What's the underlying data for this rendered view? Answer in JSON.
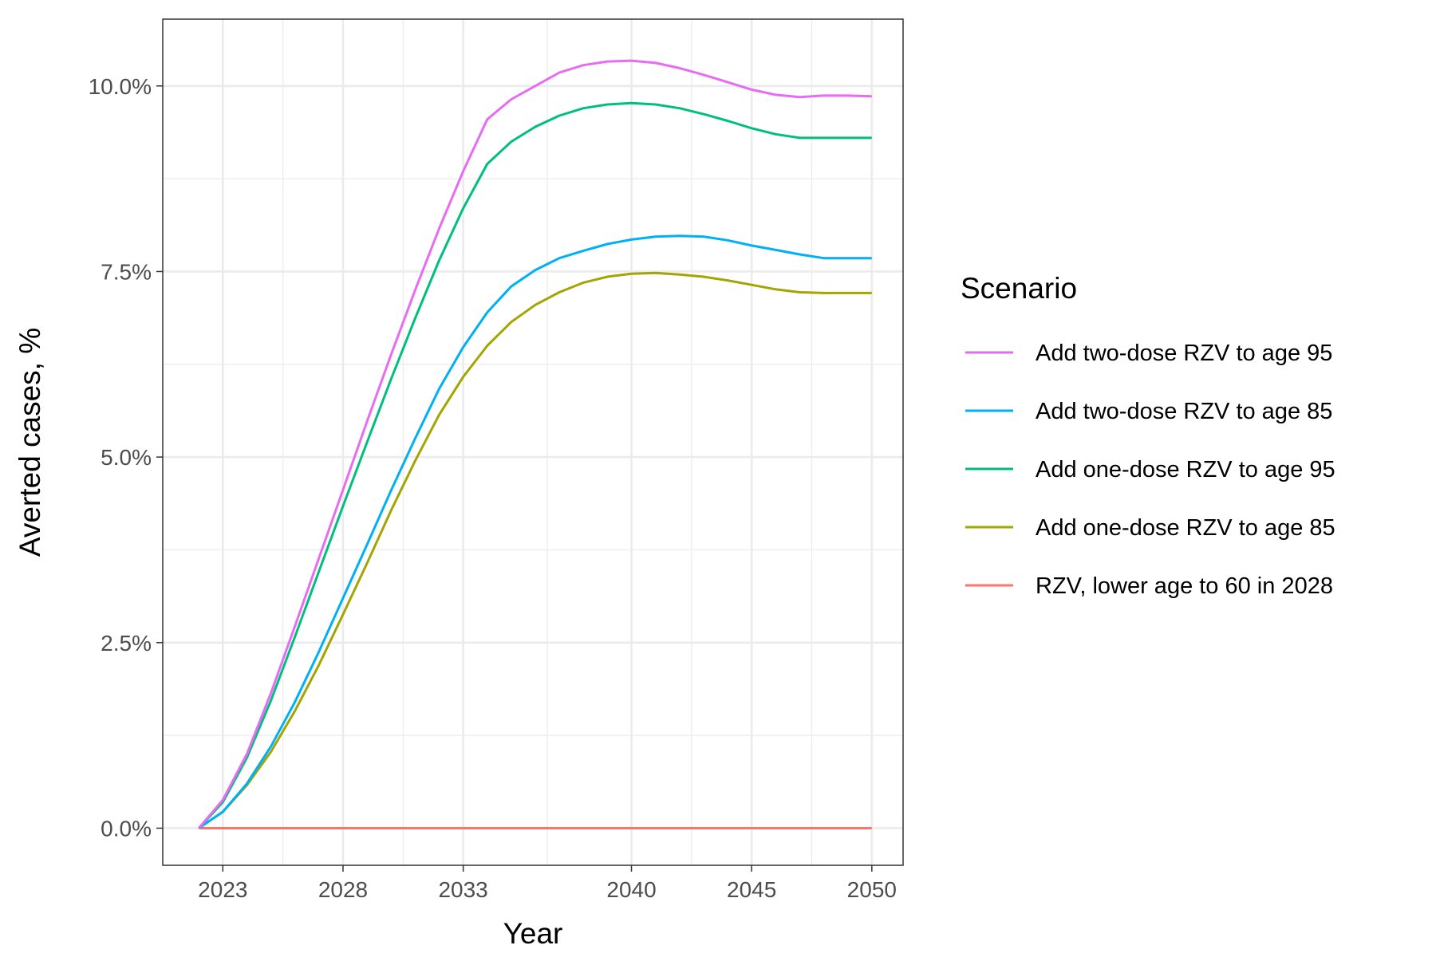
{
  "chart_data": {
    "type": "line",
    "xlabel": "Year",
    "ylabel": "Averted cases, %",
    "xlim": [
      2020.5,
      2051.3
    ],
    "ylim": [
      -0.5,
      10.9
    ],
    "x_ticks": [
      2023,
      2028,
      2033,
      2040,
      2045,
      2050
    ],
    "x_tick_labels": [
      "2023",
      "2028",
      "2033",
      "2040",
      "2045",
      "2050"
    ],
    "x_minor_grid": [
      2025.5,
      2030.5,
      2036.5,
      2042.5,
      2047.5
    ],
    "y_ticks": [
      0,
      2.5,
      5,
      7.5,
      10
    ],
    "y_tick_labels": [
      "0.0%",
      "2.5%",
      "5.0%",
      "7.5%",
      "10.0%"
    ],
    "y_minor_grid": [
      1.25,
      3.75,
      6.25,
      8.75
    ],
    "grid": true,
    "legend": {
      "title": "Scenario",
      "position": "right"
    },
    "x": [
      2022,
      2023,
      2024,
      2025,
      2026,
      2027,
      2028,
      2029,
      2030,
      2031,
      2032,
      2033,
      2034,
      2035,
      2036,
      2037,
      2038,
      2039,
      2040,
      2041,
      2042,
      2043,
      2044,
      2045,
      2046,
      2047,
      2048,
      2049,
      2050
    ],
    "series": [
      {
        "name": "Add two-dose RZV to age 95",
        "color": "#E76BF3",
        "values": [
          0,
          0.38,
          1.0,
          1.82,
          2.72,
          3.64,
          4.56,
          5.48,
          6.38,
          7.25,
          8.08,
          8.85,
          9.55,
          9.82,
          10.0,
          10.18,
          10.28,
          10.33,
          10.34,
          10.31,
          10.24,
          10.15,
          10.05,
          9.95,
          9.88,
          9.85,
          9.87,
          9.87,
          9.86
        ]
      },
      {
        "name": "Add two-dose RZV to age 85",
        "color": "#00B0F6",
        "values": [
          0,
          0.22,
          0.6,
          1.1,
          1.7,
          2.38,
          3.1,
          3.82,
          4.55,
          5.25,
          5.92,
          6.48,
          6.95,
          7.3,
          7.52,
          7.68,
          7.78,
          7.87,
          7.93,
          7.97,
          7.98,
          7.97,
          7.92,
          7.85,
          7.79,
          7.73,
          7.68,
          7.68,
          7.68
        ]
      },
      {
        "name": "Add one-dose RZV to age 95",
        "color": "#00BF7D",
        "values": [
          0,
          0.35,
          0.95,
          1.72,
          2.58,
          3.46,
          4.34,
          5.2,
          6.05,
          6.87,
          7.65,
          8.35,
          8.95,
          9.25,
          9.45,
          9.6,
          9.7,
          9.75,
          9.77,
          9.75,
          9.7,
          9.62,
          9.53,
          9.43,
          9.35,
          9.3,
          9.3,
          9.3,
          9.3
        ]
      },
      {
        "name": "Add one-dose RZV to age 85",
        "color": "#A3A500",
        "values": [
          0,
          0.22,
          0.58,
          1.03,
          1.58,
          2.2,
          2.88,
          3.57,
          4.28,
          4.95,
          5.57,
          6.08,
          6.5,
          6.82,
          7.05,
          7.22,
          7.35,
          7.43,
          7.47,
          7.48,
          7.46,
          7.43,
          7.38,
          7.32,
          7.26,
          7.22,
          7.21,
          7.21,
          7.21
        ]
      },
      {
        "name": "RZV, lower age to 60 in 2028",
        "color": "#F8766D",
        "values": [
          0,
          0,
          0,
          0,
          0,
          0,
          0,
          0,
          0,
          0,
          0,
          0,
          0,
          0,
          0,
          0,
          0,
          0,
          0,
          0,
          0,
          0,
          0,
          0,
          0,
          0,
          0,
          0,
          0
        ]
      }
    ]
  }
}
